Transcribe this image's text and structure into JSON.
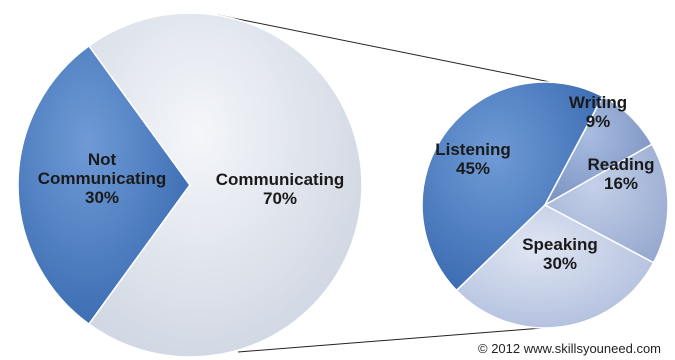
{
  "chart_data": {
    "type": "pie",
    "title": "",
    "main_pie": {
      "slices": [
        {
          "label": "Not Communicating",
          "value": 30,
          "display": "30%",
          "color": "#4a7fc4"
        },
        {
          "label": "Communicating",
          "value": 70,
          "display": "70%",
          "color": "#dfe4ec"
        }
      ]
    },
    "breakdown_pie": {
      "of": "Communicating",
      "slices": [
        {
          "label": "Listening",
          "value": 45,
          "display": "45%",
          "color": "#4a7fc4"
        },
        {
          "label": "Writing",
          "value": 9,
          "display": "9%",
          "color": "#8fa6cf"
        },
        {
          "label": "Reading",
          "value": 16,
          "display": "16%",
          "color": "#aebcdc"
        },
        {
          "label": "Speaking",
          "value": 30,
          "display": "30%",
          "color": "#c9d2e8"
        }
      ]
    }
  },
  "credit": "© 2012 www.skillsyouneed.com"
}
